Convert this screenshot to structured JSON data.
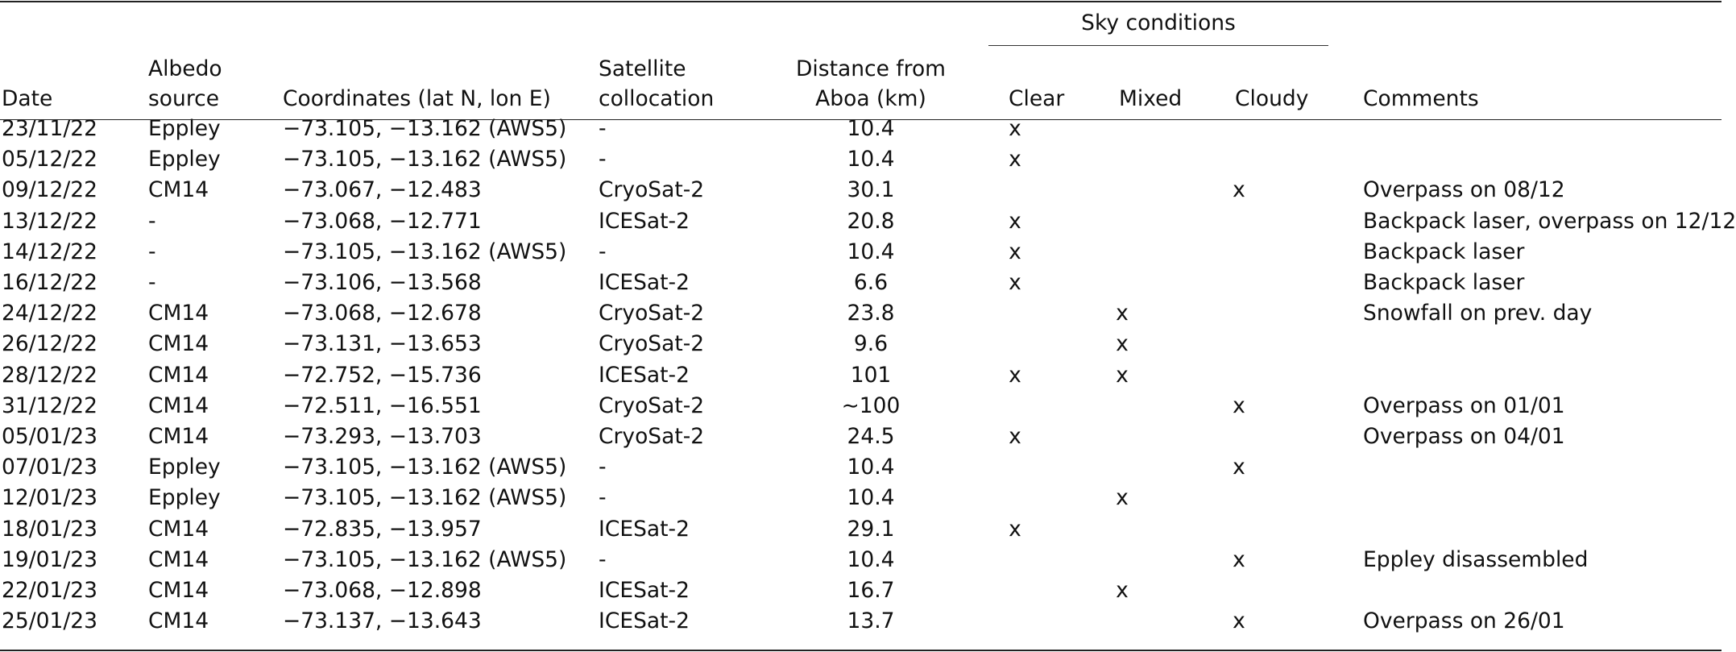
{
  "table": {
    "header": {
      "group_label": "Sky conditions",
      "date": "Date",
      "albedo": [
        "Albedo",
        "source"
      ],
      "coordinates": "Coordinates (lat N, lon E)",
      "satellite": [
        "Satellite",
        "collocation"
      ],
      "distance": [
        "Distance from",
        "Aboa (km)"
      ],
      "clear": "Clear",
      "mixed": "Mixed",
      "cloudy": "Cloudy",
      "comments": "Comments"
    },
    "rows": [
      {
        "date": "23/11/22",
        "albedo": "Eppley",
        "coords": "−73.105, −13.162 (AWS5)",
        "sat": "-",
        "dist": "10.4",
        "clear": "x",
        "mixed": "",
        "cloudy": "",
        "comment": ""
      },
      {
        "date": "05/12/22",
        "albedo": "Eppley",
        "coords": "−73.105, −13.162 (AWS5)",
        "sat": "-",
        "dist": "10.4",
        "clear": "x",
        "mixed": "",
        "cloudy": "",
        "comment": ""
      },
      {
        "date": "09/12/22",
        "albedo": "CM14",
        "coords": "−73.067, −12.483",
        "sat": "CryoSat-2",
        "dist": "30.1",
        "clear": "",
        "mixed": "",
        "cloudy": "x",
        "comment": "Overpass on 08/12"
      },
      {
        "date": "13/12/22",
        "albedo": "-",
        "coords": "−73.068, −12.771",
        "sat": "ICESat-2",
        "dist": "20.8",
        "clear": "x",
        "mixed": "",
        "cloudy": "",
        "comment": "Backpack laser, overpass on 12/12"
      },
      {
        "date": "14/12/22",
        "albedo": "-",
        "coords": "−73.105, −13.162 (AWS5)",
        "sat": "-",
        "dist": "10.4",
        "clear": "x",
        "mixed": "",
        "cloudy": "",
        "comment": "Backpack laser"
      },
      {
        "date": "16/12/22",
        "albedo": "-",
        "coords": "−73.106, −13.568",
        "sat": "ICESat-2",
        "dist": "6.6",
        "clear": "x",
        "mixed": "",
        "cloudy": "",
        "comment": "Backpack laser"
      },
      {
        "date": "24/12/22",
        "albedo": "CM14",
        "coords": "−73.068, −12.678",
        "sat": "CryoSat-2",
        "dist": "23.8",
        "clear": "",
        "mixed": "x",
        "cloudy": "",
        "comment": "Snowfall on prev. day"
      },
      {
        "date": "26/12/22",
        "albedo": "CM14",
        "coords": "−73.131, −13.653",
        "sat": "CryoSat-2",
        "dist": "9.6",
        "clear": "",
        "mixed": "x",
        "cloudy": "",
        "comment": ""
      },
      {
        "date": "28/12/22",
        "albedo": "CM14",
        "coords": "−72.752, −15.736",
        "sat": "ICESat-2",
        "dist": "101",
        "clear": "x",
        "mixed": "x",
        "cloudy": "",
        "comment": ""
      },
      {
        "date": "31/12/22",
        "albedo": "CM14",
        "coords": "−72.511, −16.551",
        "sat": "CryoSat-2",
        "dist": "∼100",
        "clear": "",
        "mixed": "",
        "cloudy": "x",
        "comment": "Overpass on 01/01"
      },
      {
        "date": "05/01/23",
        "albedo": "CM14",
        "coords": "−73.293, −13.703",
        "sat": "CryoSat-2",
        "dist": "24.5",
        "clear": "x",
        "mixed": "",
        "cloudy": "",
        "comment": "Overpass on 04/01"
      },
      {
        "date": "07/01/23",
        "albedo": "Eppley",
        "coords": "−73.105, −13.162 (AWS5)",
        "sat": "-",
        "dist": "10.4",
        "clear": "",
        "mixed": "",
        "cloudy": "x",
        "comment": ""
      },
      {
        "date": "12/01/23",
        "albedo": "Eppley",
        "coords": "−73.105, −13.162 (AWS5)",
        "sat": "-",
        "dist": "10.4",
        "clear": "",
        "mixed": "x",
        "cloudy": "",
        "comment": ""
      },
      {
        "date": "18/01/23",
        "albedo": "CM14",
        "coords": "−72.835, −13.957",
        "sat": "ICESat-2",
        "dist": "29.1",
        "clear": "x",
        "mixed": "",
        "cloudy": "",
        "comment": ""
      },
      {
        "date": "19/01/23",
        "albedo": "CM14",
        "coords": "−73.105, −13.162 (AWS5)",
        "sat": "-",
        "dist": "10.4",
        "clear": "",
        "mixed": "",
        "cloudy": "x",
        "comment": "Eppley disassembled"
      },
      {
        "date": "22/01/23",
        "albedo": "CM14",
        "coords": "−73.068, −12.898",
        "sat": "ICESat-2",
        "dist": "16.7",
        "clear": "",
        "mixed": "x",
        "cloudy": "",
        "comment": ""
      },
      {
        "date": "25/01/23",
        "albedo": "CM14",
        "coords": "−73.137, −13.643",
        "sat": "ICESat-2",
        "dist": "13.7",
        "clear": "",
        "mixed": "",
        "cloudy": "x",
        "comment": "Overpass on 26/01"
      }
    ]
  }
}
